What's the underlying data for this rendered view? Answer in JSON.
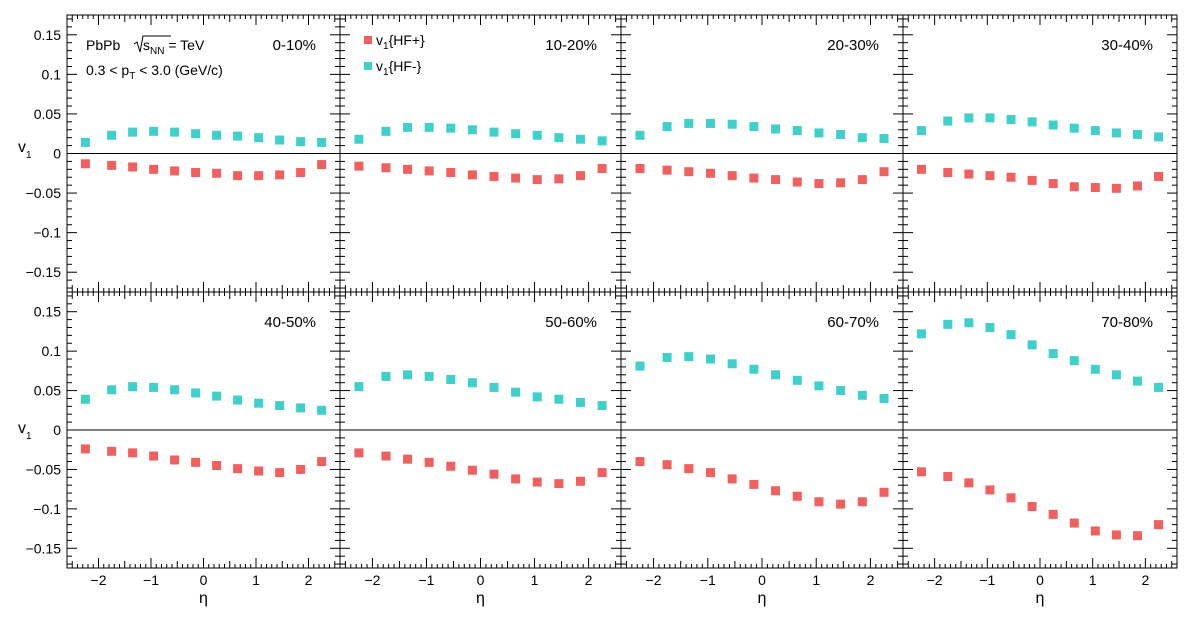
{
  "chart_data": {
    "type": "scatter",
    "grid": false,
    "x": [
      -2.25,
      -1.75,
      -1.35,
      -0.95,
      -0.55,
      -0.15,
      0.25,
      0.65,
      1.05,
      1.45,
      1.85,
      2.25
    ],
    "xlabel": "η",
    "ylabel_main": "v",
    "ylabel_sub": "1",
    "xlim": [
      -2.6,
      2.6
    ],
    "ylim": [
      -0.175,
      0.175
    ],
    "x_ticks": [
      -2,
      -1,
      0,
      1,
      2
    ],
    "x_tick_labels": [
      "−2",
      "−1",
      "0",
      "1",
      "2"
    ],
    "y_ticks": [
      -0.15,
      -0.1,
      -0.05,
      0,
      0.05,
      0.1,
      0.15
    ],
    "y_tick_labels": [
      "−0.15",
      "−0.1",
      "−0.05",
      "0",
      "0.05",
      "0.1",
      "0.15"
    ],
    "series_info": [
      {
        "main": "v",
        "sub": "1",
        "tail": "{HF+}",
        "color": "#f0605f"
      },
      {
        "main": "v",
        "sub": "1",
        "tail": "{HF-}",
        "color": "#3fd0cc"
      }
    ],
    "system": {
      "line1_a": "PbPb",
      "line1_b": "s",
      "line1_c": "NN",
      "line1_d": " = TeV",
      "line2_a": "0.3 < p",
      "line2_b": "T",
      "line2_c": " < 3.0 (GeV/c)"
    },
    "panels": [
      {
        "label": "0-10%",
        "hf_plus": [
          -0.013,
          -0.015,
          -0.017,
          -0.02,
          -0.022,
          -0.024,
          -0.025,
          -0.028,
          -0.028,
          -0.027,
          -0.024,
          -0.014
        ],
        "hf_minus": [
          0.014,
          0.023,
          0.027,
          0.028,
          0.027,
          0.025,
          0.023,
          0.022,
          0.02,
          0.017,
          0.015,
          0.014
        ]
      },
      {
        "label": "10-20%",
        "hf_plus": [
          -0.016,
          -0.018,
          -0.02,
          -0.022,
          -0.024,
          -0.027,
          -0.029,
          -0.031,
          -0.033,
          -0.032,
          -0.028,
          -0.019
        ],
        "hf_minus": [
          0.018,
          0.028,
          0.033,
          0.033,
          0.032,
          0.03,
          0.027,
          0.025,
          0.023,
          0.02,
          0.018,
          0.016
        ]
      },
      {
        "label": "20-30%",
        "hf_plus": [
          -0.019,
          -0.021,
          -0.023,
          -0.025,
          -0.028,
          -0.031,
          -0.033,
          -0.036,
          -0.038,
          -0.037,
          -0.033,
          -0.023
        ],
        "hf_minus": [
          0.023,
          0.034,
          0.038,
          0.038,
          0.037,
          0.034,
          0.031,
          0.029,
          0.026,
          0.024,
          0.02,
          0.019
        ]
      },
      {
        "label": "30-40%",
        "hf_plus": [
          -0.02,
          -0.024,
          -0.026,
          -0.028,
          -0.03,
          -0.034,
          -0.038,
          -0.042,
          -0.043,
          -0.044,
          -0.041,
          -0.029
        ],
        "hf_minus": [
          0.029,
          0.041,
          0.045,
          0.045,
          0.043,
          0.04,
          0.036,
          0.032,
          0.029,
          0.026,
          0.024,
          0.021
        ]
      },
      {
        "label": "40-50%",
        "hf_plus": [
          -0.024,
          -0.027,
          -0.029,
          -0.033,
          -0.038,
          -0.041,
          -0.045,
          -0.049,
          -0.052,
          -0.054,
          -0.05,
          -0.04
        ],
        "hf_minus": [
          0.039,
          0.051,
          0.055,
          0.054,
          0.051,
          0.047,
          0.043,
          0.038,
          0.034,
          0.031,
          0.028,
          0.025
        ]
      },
      {
        "label": "50-60%",
        "hf_plus": [
          -0.029,
          -0.033,
          -0.037,
          -0.041,
          -0.046,
          -0.051,
          -0.056,
          -0.062,
          -0.066,
          -0.068,
          -0.065,
          -0.054
        ],
        "hf_minus": [
          0.055,
          0.068,
          0.07,
          0.068,
          0.064,
          0.06,
          0.054,
          0.048,
          0.042,
          0.039,
          0.035,
          0.031
        ]
      },
      {
        "label": "60-70%",
        "hf_plus": [
          -0.04,
          -0.044,
          -0.049,
          -0.054,
          -0.062,
          -0.069,
          -0.077,
          -0.084,
          -0.091,
          -0.094,
          -0.091,
          -0.079
        ],
        "hf_minus": [
          0.081,
          0.092,
          0.093,
          0.09,
          0.084,
          0.077,
          0.07,
          0.063,
          0.056,
          0.05,
          0.044,
          0.04
        ]
      },
      {
        "label": "70-80%",
        "hf_plus": [
          -0.053,
          -0.059,
          -0.067,
          -0.076,
          -0.086,
          -0.097,
          -0.107,
          -0.118,
          -0.128,
          -0.133,
          -0.134,
          -0.12
        ],
        "hf_minus": [
          0.122,
          0.134,
          0.136,
          0.13,
          0.121,
          0.108,
          0.097,
          0.088,
          0.077,
          0.07,
          0.062,
          0.054
        ]
      }
    ]
  }
}
